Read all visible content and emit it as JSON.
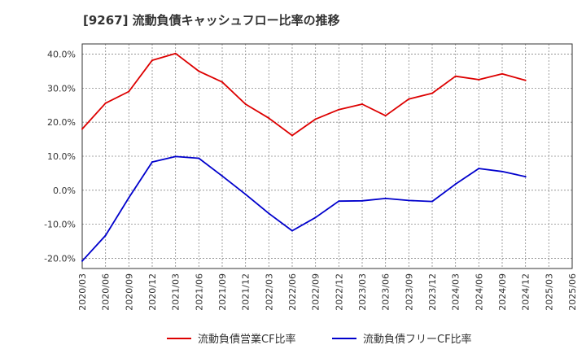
{
  "chart_data": {
    "type": "line",
    "title": "[9267]  流動負債キャッシュフロー比率の推移",
    "x": [
      "2020/03",
      "2020/06",
      "2020/09",
      "2020/12",
      "2021/03",
      "2021/06",
      "2021/09",
      "2021/12",
      "2022/03",
      "2022/06",
      "2022/09",
      "2022/12",
      "2023/03",
      "2023/06",
      "2023/09",
      "2023/12",
      "2024/03",
      "2024/06",
      "2024/09",
      "2024/12",
      "2025/03",
      "2025/06"
    ],
    "y_ticks": [
      "40.0%",
      "30.0%",
      "20.0%",
      "10.0%",
      "0.0%",
      "-10.0%",
      "-20.0%"
    ],
    "ylim": [
      -23,
      43
    ],
    "grid": true,
    "legend_position": "bottom",
    "series": [
      {
        "name": "流動負債営業CF比率",
        "color": "#dd0000",
        "values": [
          18.0,
          25.6,
          29.0,
          38.2,
          40.2,
          35.0,
          31.8,
          25.3,
          21.2,
          16.1,
          20.9,
          23.7,
          25.3,
          21.9,
          26.8,
          28.5,
          33.5,
          32.5,
          34.2,
          32.3,
          null,
          null
        ]
      },
      {
        "name": "流動負債フリーCF比率",
        "color": "#0000cc",
        "values": [
          -20.8,
          -13.3,
          -2.2,
          8.3,
          9.9,
          9.4,
          4.2,
          -1.2,
          -6.8,
          -11.9,
          -8.0,
          -3.2,
          -3.1,
          -2.4,
          -3.0,
          -3.3,
          1.8,
          6.4,
          5.5,
          4.0,
          null,
          null
        ]
      }
    ]
  }
}
